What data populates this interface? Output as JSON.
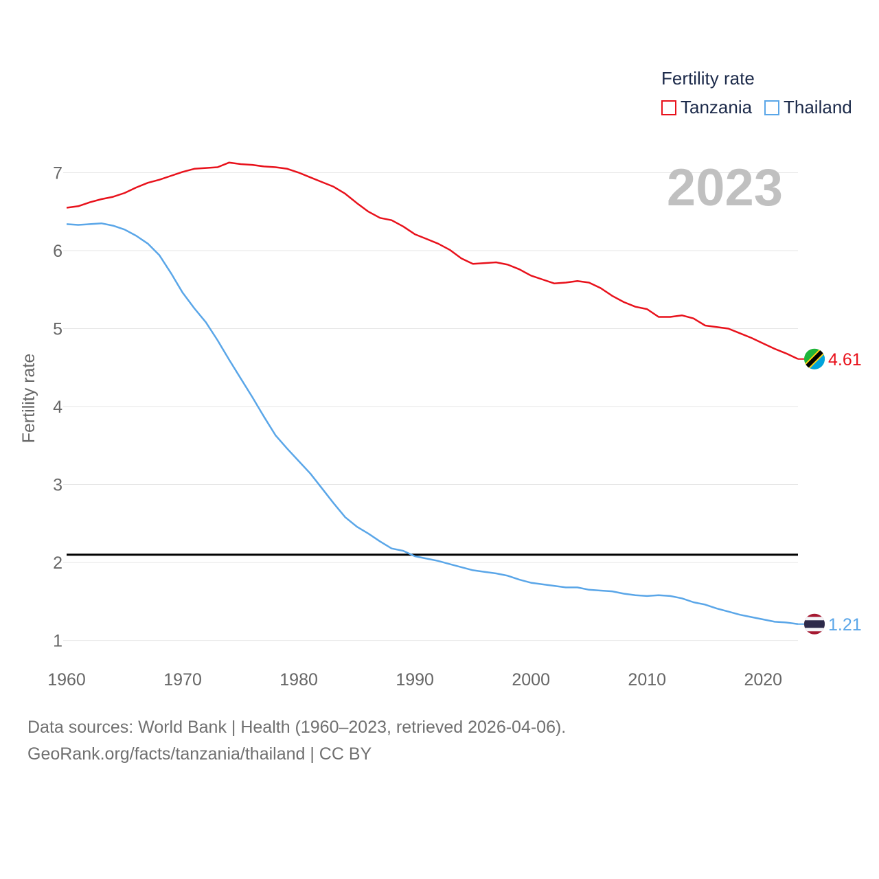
{
  "legend": {
    "title": "Fertility rate",
    "items": [
      {
        "label": "Tanzania",
        "color": "#e8111b"
      },
      {
        "label": "Thailand",
        "color": "#5aa6e8"
      }
    ]
  },
  "year_label": "2023",
  "footer": {
    "line1": "Data sources: World Bank | Health (1960–2023, retrieved 2026-04-06).",
    "line2": "GeoRank.org/facts/tanzania/thailand | CC BY"
  },
  "colors": {
    "tanzania": "#e8111b",
    "thailand": "#5aa6e8",
    "grid": "#e6e6e6",
    "axis_text": "#666666",
    "year_watermark": "#c0c0c0",
    "reference_line": "#000000"
  },
  "icons": {
    "tanzania_flag": "tanzania-flag-icon",
    "thailand_flag": "thailand-flag-icon"
  },
  "chart_data": {
    "type": "line",
    "title": "",
    "xlabel": "",
    "ylabel": "Fertility rate",
    "xlim": [
      1960,
      2023
    ],
    "ylim": [
      0.75,
      7.55
    ],
    "x_ticks": [
      1960,
      1970,
      1980,
      1990,
      2000,
      2010,
      2020
    ],
    "y_ticks": [
      1,
      2,
      3,
      4,
      5,
      6,
      7
    ],
    "reference_line": {
      "y": 2.1
    },
    "x": [
      1960,
      1961,
      1962,
      1963,
      1964,
      1965,
      1966,
      1967,
      1968,
      1969,
      1970,
      1971,
      1972,
      1973,
      1974,
      1975,
      1976,
      1977,
      1978,
      1979,
      1980,
      1981,
      1982,
      1983,
      1984,
      1985,
      1986,
      1987,
      1988,
      1989,
      1990,
      1991,
      1992,
      1993,
      1994,
      1995,
      1996,
      1997,
      1998,
      1999,
      2000,
      2001,
      2002,
      2003,
      2004,
      2005,
      2006,
      2007,
      2008,
      2009,
      2010,
      2011,
      2012,
      2013,
      2014,
      2015,
      2016,
      2017,
      2018,
      2019,
      2020,
      2021,
      2022,
      2023
    ],
    "series": [
      {
        "name": "Tanzania",
        "color": "#e8111b",
        "end_label": "4.61",
        "values": [
          6.55,
          6.57,
          6.62,
          6.66,
          6.69,
          6.74,
          6.81,
          6.87,
          6.91,
          6.96,
          7.01,
          7.05,
          7.06,
          7.07,
          7.13,
          7.11,
          7.1,
          7.08,
          7.07,
          7.05,
          7.0,
          6.94,
          6.88,
          6.82,
          6.73,
          6.61,
          6.5,
          6.42,
          6.39,
          6.31,
          6.21,
          6.15,
          6.09,
          6.01,
          5.9,
          5.83,
          5.84,
          5.85,
          5.82,
          5.76,
          5.68,
          5.63,
          5.58,
          5.59,
          5.61,
          5.59,
          5.52,
          5.42,
          5.34,
          5.28,
          5.25,
          5.15,
          5.15,
          5.17,
          5.13,
          5.04,
          5.02,
          5.0,
          4.94,
          4.88,
          4.81,
          4.74,
          4.68,
          4.61
        ]
      },
      {
        "name": "Thailand",
        "color": "#5aa6e8",
        "end_label": "1.21",
        "values": [
          6.34,
          6.33,
          6.34,
          6.35,
          6.32,
          6.27,
          6.19,
          6.09,
          5.94,
          5.71,
          5.46,
          5.26,
          5.08,
          4.85,
          4.6,
          4.36,
          4.12,
          3.87,
          3.63,
          3.46,
          3.3,
          3.14,
          2.95,
          2.76,
          2.58,
          2.46,
          2.37,
          2.27,
          2.18,
          2.15,
          2.08,
          2.05,
          2.02,
          1.98,
          1.94,
          1.9,
          1.88,
          1.86,
          1.83,
          1.78,
          1.74,
          1.72,
          1.7,
          1.68,
          1.68,
          1.65,
          1.64,
          1.63,
          1.6,
          1.58,
          1.57,
          1.58,
          1.57,
          1.54,
          1.49,
          1.46,
          1.41,
          1.37,
          1.33,
          1.3,
          1.27,
          1.24,
          1.23,
          1.21
        ]
      }
    ]
  }
}
